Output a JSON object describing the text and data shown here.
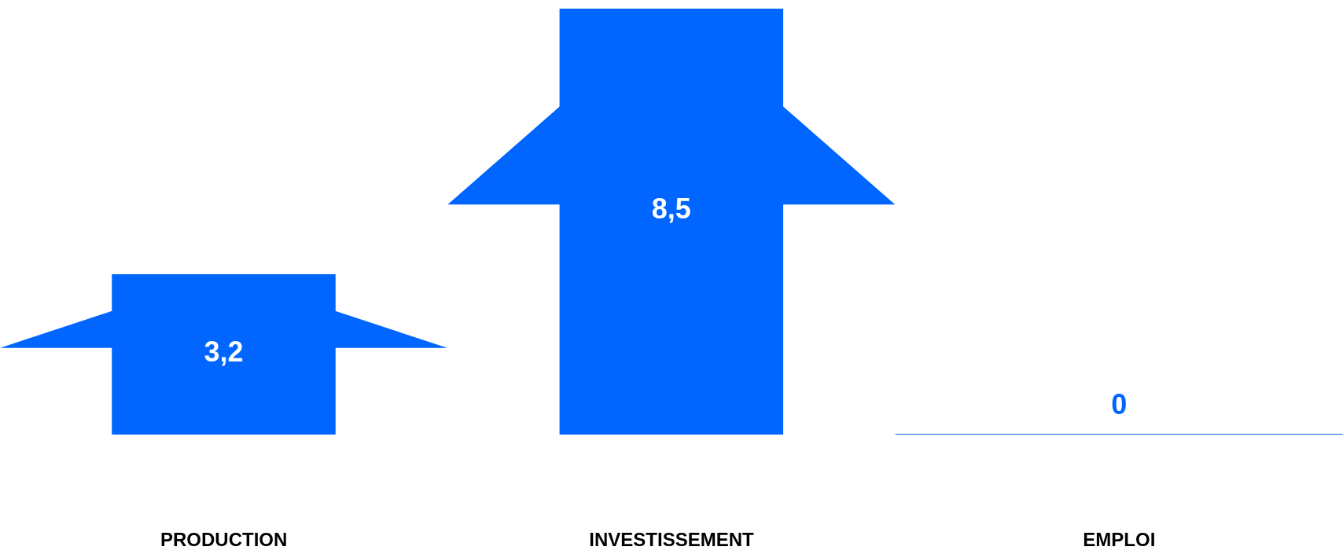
{
  "chart_data": {
    "type": "bar",
    "categories": [
      "PRODUCTION",
      "INVESTISSEMENT",
      "EMPLOI"
    ],
    "values": [
      3.2,
      8.5,
      0
    ],
    "value_labels": [
      "3,2",
      "8,5",
      "0"
    ],
    "color": "#0066ff",
    "ylim": [
      0,
      8.5
    ],
    "tick_labels": "x"
  }
}
